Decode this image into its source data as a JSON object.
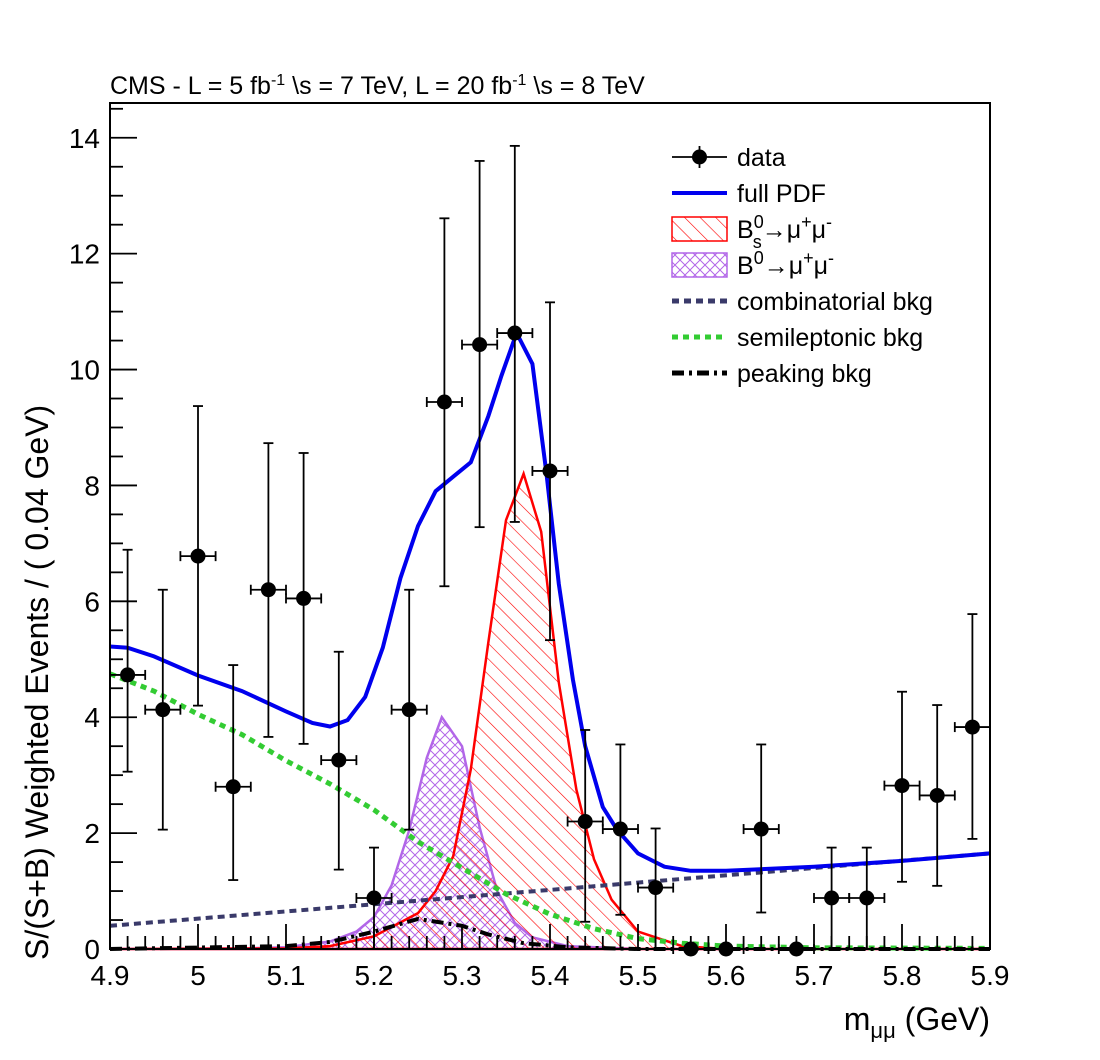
{
  "chart_data": {
    "type": "line",
    "title": "CMS - L = 5 fb⁻¹ √s = 7 TeV, L = 20 fb⁻¹ √s = 8 TeV",
    "title_parts": [
      "CMS - L = 5 fb",
      "-1",
      " \\s = 7 TeV, L = 20 fb",
      "-1",
      " \\s = 8 TeV"
    ],
    "xlabel": "m",
    "xlabel_sub": "μμ",
    "xlabel_unit": " (GeV)",
    "ylabel": "S/(S+B) Weighted Events / ( 0.04 GeV)",
    "xlim": [
      4.9,
      5.9
    ],
    "ylim": [
      0,
      14.6
    ],
    "x_ticks": [
      "4.9",
      "5",
      "5.1",
      "5.2",
      "5.3",
      "5.4",
      "5.5",
      "5.6",
      "5.7",
      "5.8",
      "5.9"
    ],
    "y_ticks": [
      "0",
      "2",
      "4",
      "6",
      "8",
      "10",
      "12",
      "14"
    ],
    "grid": false,
    "legend_position": "top-right",
    "colors": {
      "full_pdf": "#0000ee",
      "bs": "#ff0000",
      "b0": "#b266e8",
      "combinatorial": "#3a3a6a",
      "semileptonic": "#33cc33",
      "peaking": "#000000",
      "data": "#000000"
    },
    "legend": [
      {
        "key": "data",
        "label": "data"
      },
      {
        "key": "full_pdf",
        "label": "full PDF"
      },
      {
        "key": "bs",
        "label": "B",
        "sup": "0",
        "sub": "s",
        "rest": "→μ",
        "sup2": "+",
        "rest2": "μ",
        "sup3": "-"
      },
      {
        "key": "b0",
        "label": "B",
        "sup": "0",
        "sub": "",
        "rest": "→μ",
        "sup2": "+",
        "rest2": "μ",
        "sup3": "-"
      },
      {
        "key": "combinatorial",
        "label": "combinatorial bkg"
      },
      {
        "key": "semileptonic",
        "label": "semileptonic bkg"
      },
      {
        "key": "peaking",
        "label": "peaking bkg"
      }
    ],
    "data_points": {
      "x_halfwidth": 0.02,
      "points": [
        [
          4.92,
          4.73,
          6.89,
          3.06
        ],
        [
          4.96,
          4.13,
          6.2,
          2.06
        ],
        [
          5.0,
          6.78,
          9.37,
          4.2
        ],
        [
          5.04,
          2.8,
          4.9,
          1.19
        ],
        [
          5.08,
          6.2,
          8.73,
          3.66
        ],
        [
          5.12,
          6.05,
          8.56,
          3.54
        ],
        [
          5.16,
          3.26,
          5.13,
          1.37
        ],
        [
          5.2,
          0.88,
          1.75,
          0
        ],
        [
          5.24,
          4.13,
          6.2,
          2.06
        ],
        [
          5.28,
          9.44,
          12.61,
          6.26
        ],
        [
          5.32,
          10.43,
          13.6,
          7.28
        ],
        [
          5.36,
          10.63,
          13.86,
          7.37
        ],
        [
          5.4,
          8.25,
          11.16,
          5.33
        ],
        [
          5.44,
          2.2,
          3.78,
          0.47
        ],
        [
          5.48,
          2.07,
          3.53,
          0.59
        ],
        [
          5.52,
          1.06,
          2.08,
          0
        ],
        [
          5.56,
          0,
          0,
          0
        ],
        [
          5.6,
          0,
          0,
          0
        ],
        [
          5.64,
          2.07,
          3.53,
          0.63
        ],
        [
          5.68,
          0,
          0,
          0
        ],
        [
          5.72,
          0.88,
          1.75,
          0
        ],
        [
          5.76,
          0.88,
          1.75,
          0
        ],
        [
          5.8,
          2.82,
          4.44,
          1.16
        ],
        [
          5.84,
          2.65,
          4.21,
          1.09
        ],
        [
          5.88,
          3.83,
          5.78,
          1.9
        ]
      ]
    },
    "curves": {
      "full_pdf": [
        [
          4.9,
          5.22
        ],
        [
          4.92,
          5.2
        ],
        [
          4.95,
          5.05
        ],
        [
          5.0,
          4.72
        ],
        [
          5.05,
          4.45
        ],
        [
          5.1,
          4.1
        ],
        [
          5.13,
          3.9
        ],
        [
          5.15,
          3.84
        ],
        [
          5.17,
          3.95
        ],
        [
          5.19,
          4.35
        ],
        [
          5.21,
          5.2
        ],
        [
          5.23,
          6.4
        ],
        [
          5.25,
          7.3
        ],
        [
          5.27,
          7.9
        ],
        [
          5.29,
          8.15
        ],
        [
          5.31,
          8.4
        ],
        [
          5.33,
          9.2
        ],
        [
          5.345,
          9.9
        ],
        [
          5.362,
          10.63
        ],
        [
          5.38,
          10.1
        ],
        [
          5.396,
          8.2
        ],
        [
          5.41,
          6.3
        ],
        [
          5.426,
          4.65
        ],
        [
          5.44,
          3.5
        ],
        [
          5.46,
          2.45
        ],
        [
          5.476,
          2.06
        ],
        [
          5.5,
          1.65
        ],
        [
          5.53,
          1.42
        ],
        [
          5.56,
          1.35
        ],
        [
          5.6,
          1.35
        ],
        [
          5.7,
          1.42
        ],
        [
          5.8,
          1.52
        ],
        [
          5.9,
          1.65
        ]
      ],
      "bs": [
        [
          4.9,
          0
        ],
        [
          5.1,
          0.01
        ],
        [
          5.15,
          0.05
        ],
        [
          5.2,
          0.22
        ],
        [
          5.25,
          0.62
        ],
        [
          5.27,
          1.0
        ],
        [
          5.29,
          1.6
        ],
        [
          5.31,
          3.1
        ],
        [
          5.33,
          5.3
        ],
        [
          5.35,
          7.4
        ],
        [
          5.37,
          8.2
        ],
        [
          5.39,
          7.2
        ],
        [
          5.41,
          4.6
        ],
        [
          5.43,
          2.75
        ],
        [
          5.45,
          1.55
        ],
        [
          5.47,
          0.85
        ],
        [
          5.5,
          0.3
        ],
        [
          5.55,
          0.05
        ],
        [
          5.6,
          0
        ],
        [
          5.9,
          0
        ]
      ],
      "b0": [
        [
          4.9,
          0
        ],
        [
          5.05,
          0.01
        ],
        [
          5.1,
          0.03
        ],
        [
          5.15,
          0.13
        ],
        [
          5.18,
          0.3
        ],
        [
          5.2,
          0.55
        ],
        [
          5.22,
          1.1
        ],
        [
          5.24,
          2.05
        ],
        [
          5.26,
          3.3
        ],
        [
          5.277,
          4.0
        ],
        [
          5.3,
          3.5
        ],
        [
          5.32,
          2.1
        ],
        [
          5.34,
          1.0
        ],
        [
          5.36,
          0.45
        ],
        [
          5.38,
          0.2
        ],
        [
          5.42,
          0.05
        ],
        [
          5.5,
          0
        ],
        [
          5.9,
          0
        ]
      ],
      "combinatorial": [
        [
          4.9,
          0.4
        ],
        [
          5.4,
          1.02
        ],
        [
          5.9,
          1.65
        ]
      ],
      "semileptonic": [
        [
          4.9,
          4.75
        ],
        [
          4.95,
          4.45
        ],
        [
          5.0,
          4.05
        ],
        [
          5.05,
          3.7
        ],
        [
          5.1,
          3.25
        ],
        [
          5.15,
          2.85
        ],
        [
          5.2,
          2.4
        ],
        [
          5.25,
          1.85
        ],
        [
          5.3,
          1.4
        ],
        [
          5.35,
          0.95
        ],
        [
          5.4,
          0.6
        ],
        [
          5.45,
          0.35
        ],
        [
          5.5,
          0.18
        ],
        [
          5.55,
          0.1
        ],
        [
          5.6,
          0.05
        ],
        [
          5.7,
          0.02
        ],
        [
          5.9,
          0.01
        ]
      ],
      "peaking": [
        [
          4.9,
          0
        ],
        [
          5.1,
          0.05
        ],
        [
          5.15,
          0.12
        ],
        [
          5.2,
          0.3
        ],
        [
          5.25,
          0.52
        ],
        [
          5.3,
          0.4
        ],
        [
          5.33,
          0.25
        ],
        [
          5.37,
          0.1
        ],
        [
          5.42,
          0.03
        ],
        [
          5.5,
          0
        ],
        [
          5.9,
          0
        ]
      ]
    }
  }
}
